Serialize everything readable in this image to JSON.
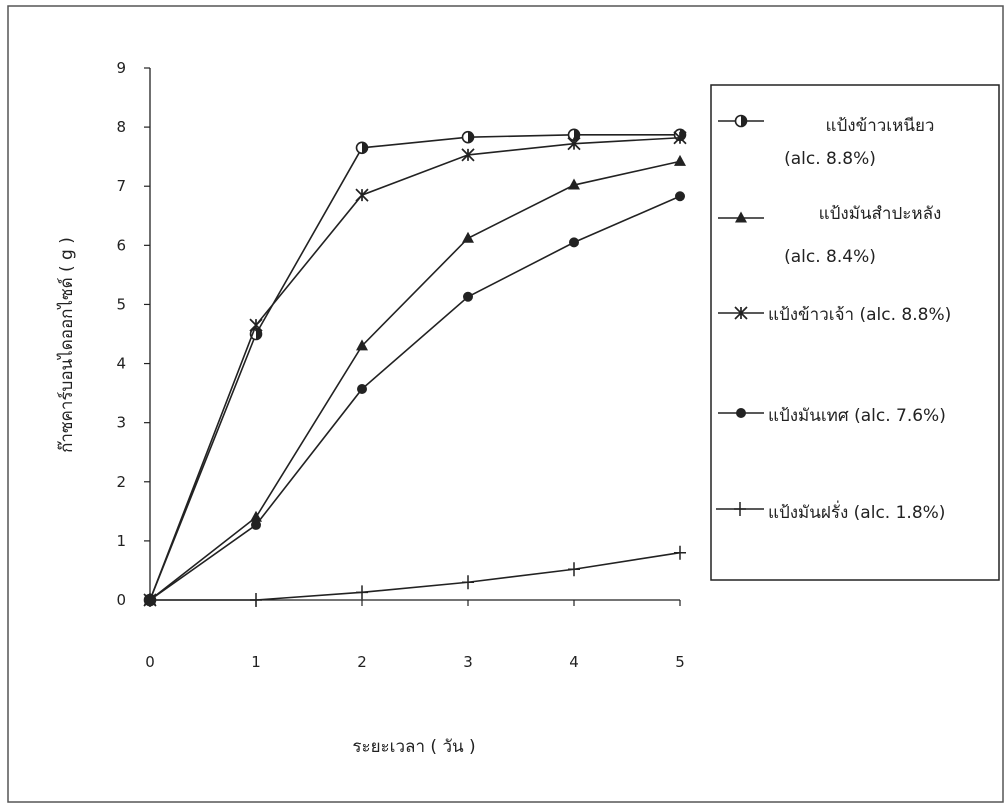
{
  "chart_data": {
    "type": "line",
    "title": "",
    "xlabel": "ระยะเวลา ( วัน )",
    "ylabel": "ก๊าซคาร์บอนไดออกไซด์ ( g )",
    "xlim": [
      0,
      5
    ],
    "ylim": [
      0,
      9
    ],
    "x_ticks": [
      "0",
      "1",
      "2",
      "3",
      "4",
      "5"
    ],
    "y_ticks": [
      "0",
      "1",
      "2",
      "3",
      "4",
      "5",
      "6",
      "7",
      "8",
      "9"
    ],
    "grid": false,
    "legend_position": "right",
    "x": [
      0,
      1,
      2,
      3,
      4,
      5
    ],
    "series": [
      {
        "name": "แป้งข้าวเหนียว",
        "note": "(alc. 8.8%)",
        "marker": "half-filled-circle",
        "values": [
          0,
          4.5,
          7.65,
          7.83,
          7.87,
          7.87
        ]
      },
      {
        "name": "แป้งมันสำปะหลัง",
        "note": "(alc. 8.4%)",
        "marker": "triangle",
        "values": [
          0,
          1.4,
          4.3,
          6.12,
          7.02,
          7.42
        ]
      },
      {
        "name": "แป้งข้าวเจ้า (alc. 8.8%)",
        "note": "",
        "marker": "asterisk",
        "values": [
          0,
          4.65,
          6.85,
          7.53,
          7.72,
          7.82
        ]
      },
      {
        "name": "แป้งมันเทศ (alc. 7.6%)",
        "note": "",
        "marker": "circle",
        "values": [
          0,
          1.27,
          3.57,
          5.13,
          6.05,
          6.83
        ]
      },
      {
        "name": "แป้งมันฝรั่ง (alc. 1.8%)",
        "note": "",
        "marker": "plus",
        "values": [
          0,
          0,
          0.13,
          0.3,
          0.52,
          0.8
        ]
      }
    ]
  },
  "colors": {
    "line": "#222222",
    "frame": "#555555",
    "background": "#ffffff"
  }
}
